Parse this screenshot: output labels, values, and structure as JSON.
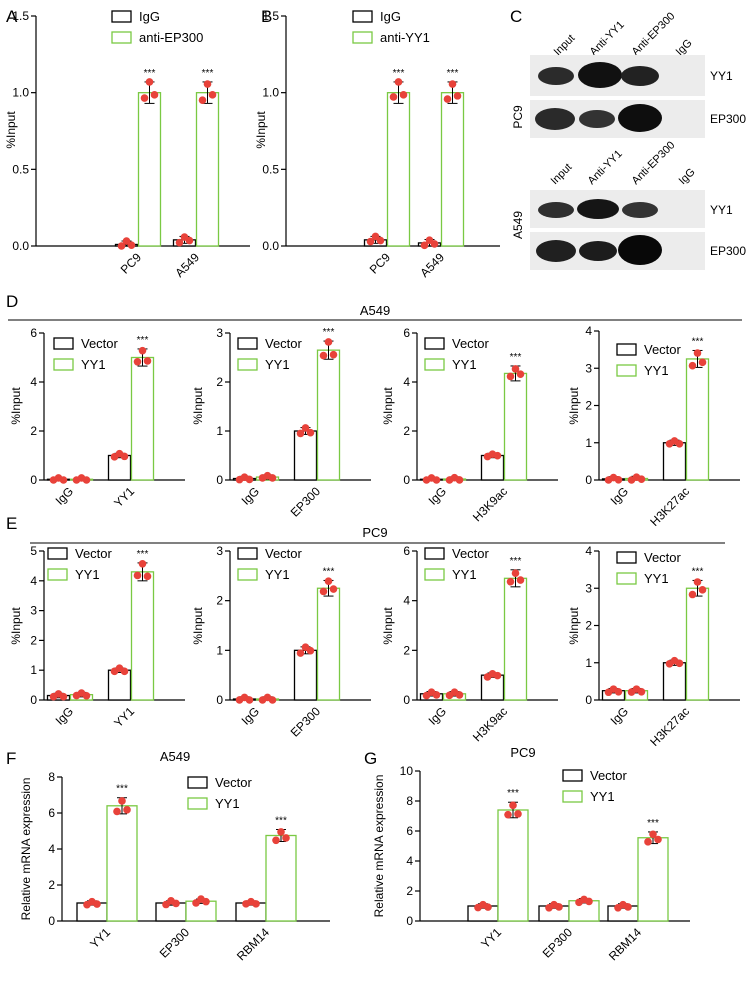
{
  "panel_letters": {
    "A": "A",
    "B": "B",
    "C": "C",
    "D": "D",
    "E": "E",
    "F": "F",
    "G": "G"
  },
  "group_titles": {
    "D": "A549",
    "E": "PC9"
  },
  "colors": {
    "control": "#000000",
    "treated": "#7ac943",
    "dot": "#e8423a",
    "blot_band": "#1a1a1a",
    "blot_bg": "#ececec"
  },
  "western_blot": {
    "top": {
      "cell": "PC9",
      "lanes": [
        "Input",
        "Anti-YY1",
        "Anti-EP300",
        "IgG"
      ],
      "rows": [
        "YY1",
        "EP300"
      ]
    },
    "bottom": {
      "cell": "A549",
      "lanes": [
        "Input",
        "Anti-YY1",
        "Anti-EP300",
        "IgG"
      ],
      "rows": [
        "YY1",
        "EP300"
      ]
    }
  },
  "chart_data": [
    {
      "id": "A",
      "type": "bar",
      "categories": [
        "PC9",
        "A549"
      ],
      "ylabel": "%Input",
      "ylim": [
        0,
        1.5
      ],
      "yticks": [
        "0.0",
        "0.5",
        "1.0",
        "1.5"
      ],
      "legend_position": "top-left",
      "series": [
        {
          "name": "IgG",
          "values": [
            0.01,
            0.04
          ]
        },
        {
          "name": "anti-EP300",
          "values": [
            1.0,
            1.0
          ]
        }
      ],
      "annotations": [
        {
          "category": "PC9",
          "text": "***"
        },
        {
          "category": "A549",
          "text": "***"
        }
      ]
    },
    {
      "id": "B",
      "type": "bar",
      "categories": [
        "PC9",
        "A549"
      ],
      "ylabel": "%Input",
      "ylim": [
        0,
        1.5
      ],
      "yticks": [
        "0.0",
        "0.5",
        "1.0",
        "1.5"
      ],
      "legend_position": "top-left",
      "series": [
        {
          "name": "IgG",
          "values": [
            0.04,
            0.02
          ]
        },
        {
          "name": "anti-YY1",
          "values": [
            1.0,
            1.0
          ]
        }
      ],
      "annotations": [
        {
          "category": "PC9",
          "text": "***"
        },
        {
          "category": "A549",
          "text": "***"
        }
      ]
    },
    {
      "id": "D1",
      "type": "bar",
      "categories": [
        "IgG",
        "YY1"
      ],
      "ylabel": "%Input",
      "ylim": [
        0,
        6
      ],
      "yticks": [
        "0",
        "2",
        "4",
        "6"
      ],
      "legend_position": "top-left",
      "series": [
        {
          "name": "Vector",
          "values": [
            0.03,
            1.0
          ]
        },
        {
          "name": "YY1",
          "values": [
            0.03,
            5.0
          ]
        }
      ],
      "annotations": [
        {
          "category": "YY1",
          "text": "***"
        }
      ]
    },
    {
      "id": "D2",
      "type": "bar",
      "categories": [
        "IgG",
        "EP300"
      ],
      "ylabel": "%Input",
      "ylim": [
        0,
        3
      ],
      "yticks": [
        "0",
        "1",
        "2",
        "3"
      ],
      "legend_position": "top-left",
      "series": [
        {
          "name": "Vector",
          "values": [
            0.03,
            1.0
          ]
        },
        {
          "name": "YY1",
          "values": [
            0.06,
            2.65
          ]
        }
      ],
      "annotations": [
        {
          "category": "EP300",
          "text": "***"
        }
      ]
    },
    {
      "id": "D3",
      "type": "bar",
      "categories": [
        "IgG",
        "H3K9ac"
      ],
      "ylabel": "%Input",
      "ylim": [
        0,
        6
      ],
      "yticks": [
        "0",
        "2",
        "4",
        "6"
      ],
      "legend_position": "top-left",
      "series": [
        {
          "name": "Vector",
          "values": [
            0.03,
            1.0
          ]
        },
        {
          "name": "YY1",
          "values": [
            0.04,
            4.35
          ]
        }
      ],
      "annotations": [
        {
          "category": "H3K9ac",
          "text": "***"
        }
      ]
    },
    {
      "id": "D4",
      "type": "bar",
      "categories": [
        "IgG",
        "H3K27ac"
      ],
      "ylabel": "%Input",
      "ylim": [
        0,
        4
      ],
      "yticks": [
        "0",
        "1",
        "2",
        "3",
        "4"
      ],
      "legend_position": "top-left",
      "series": [
        {
          "name": "Vector",
          "values": [
            0.03,
            1.0
          ]
        },
        {
          "name": "YY1",
          "values": [
            0.04,
            3.25
          ]
        }
      ],
      "annotations": [
        {
          "category": "H3K27ac",
          "text": "***"
        }
      ]
    },
    {
      "id": "E1",
      "type": "bar",
      "categories": [
        "IgG",
        "YY1"
      ],
      "ylabel": "%Input",
      "ylim": [
        0,
        5
      ],
      "yticks": [
        "0",
        "1",
        "2",
        "3",
        "4",
        "5"
      ],
      "legend_position": "top-left",
      "series": [
        {
          "name": "Vector",
          "values": [
            0.15,
            1.0
          ]
        },
        {
          "name": "YY1",
          "values": [
            0.18,
            4.3
          ]
        }
      ],
      "annotations": [
        {
          "category": "YY1",
          "text": "***"
        }
      ]
    },
    {
      "id": "E2",
      "type": "bar",
      "categories": [
        "IgG",
        "EP300"
      ],
      "ylabel": "%Input",
      "ylim": [
        0,
        3
      ],
      "yticks": [
        "0",
        "1",
        "2",
        "3"
      ],
      "legend_position": "top-left",
      "series": [
        {
          "name": "Vector",
          "values": [
            0.02,
            1.0
          ]
        },
        {
          "name": "YY1",
          "values": [
            0.02,
            2.25
          ]
        }
      ],
      "annotations": [
        {
          "category": "EP300",
          "text": "***"
        }
      ]
    },
    {
      "id": "E3",
      "type": "bar",
      "categories": [
        "IgG",
        "H3K9ac"
      ],
      "ylabel": "%Input",
      "ylim": [
        0,
        6
      ],
      "yticks": [
        "0",
        "2",
        "4",
        "6"
      ],
      "legend_position": "top-left",
      "series": [
        {
          "name": "Vector",
          "values": [
            0.25,
            1.0
          ]
        },
        {
          "name": "YY1",
          "values": [
            0.25,
            4.9
          ]
        }
      ],
      "annotations": [
        {
          "category": "H3K9ac",
          "text": "***"
        }
      ]
    },
    {
      "id": "E4",
      "type": "bar",
      "categories": [
        "IgG",
        "H3K27ac"
      ],
      "ylabel": "%Input",
      "ylim": [
        0,
        4
      ],
      "yticks": [
        "0",
        "1",
        "2",
        "3",
        "4"
      ],
      "legend_position": "top-left",
      "series": [
        {
          "name": "Vector",
          "values": [
            0.25,
            1.0
          ]
        },
        {
          "name": "YY1",
          "values": [
            0.25,
            3.0
          ]
        }
      ],
      "annotations": [
        {
          "category": "H3K27ac",
          "text": "***"
        }
      ]
    },
    {
      "id": "F",
      "type": "bar",
      "title": "A549",
      "categories": [
        "YY1",
        "EP300",
        "RBM14"
      ],
      "ylabel": "Relative mRNA expression",
      "ylim": [
        0,
        8
      ],
      "yticks": [
        "0",
        "2",
        "4",
        "6",
        "8"
      ],
      "legend_position": "top-right",
      "series": [
        {
          "name": "Vector",
          "values": [
            1.0,
            1.0,
            1.0
          ]
        },
        {
          "name": "YY1",
          "values": [
            6.4,
            1.1,
            4.75
          ]
        }
      ],
      "annotations": [
        {
          "category": "YY1",
          "text": "***"
        },
        {
          "category": "RBM14",
          "text": "***"
        }
      ]
    },
    {
      "id": "G",
      "type": "bar",
      "title": "PC9",
      "categories": [
        "YY1",
        "EP300",
        "RBM14"
      ],
      "ylabel": "Relative mRNA expression",
      "ylim": [
        0,
        10
      ],
      "yticks": [
        "0",
        "2",
        "4",
        "6",
        "8",
        "10"
      ],
      "legend_position": "top-right",
      "series": [
        {
          "name": "Vector",
          "values": [
            1.0,
            1.0,
            1.0
          ]
        },
        {
          "name": "YY1",
          "values": [
            7.4,
            1.35,
            5.55
          ]
        }
      ],
      "annotations": [
        {
          "category": "YY1",
          "text": "***"
        },
        {
          "category": "RBM14",
          "text": "***"
        }
      ]
    }
  ]
}
